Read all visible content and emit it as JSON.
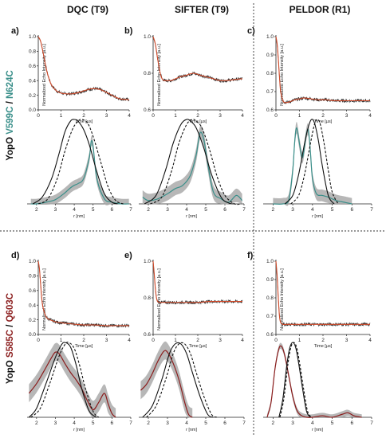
{
  "figure": {
    "columns": [
      "DQC (T9)",
      "SIFTER (T9)",
      "PELDOR (R1)"
    ],
    "rows": [
      {
        "protein": "YopO",
        "mut1": "V599C",
        "sep": "/",
        "mut2": "N624C",
        "color": "#3a8f8a"
      },
      {
        "protein": "YopO",
        "mut1": "S585C",
        "sep": "/",
        "mut2": "Q603C",
        "color": "#8b1d1d"
      }
    ],
    "panel_letters": [
      "a)",
      "b)",
      "c)",
      "d)",
      "e)",
      "f)"
    ],
    "time_xlabel": "Time [µs]",
    "time_ylabel": "Normalized Echo Intensity [a.u.]",
    "dist_xlabel": "r [nm]",
    "colors": {
      "trace": "#2a2a2a",
      "fit": "#d04a2a",
      "teal": "#3a8f8a",
      "red": "#8b1d1d",
      "band": "#aaaaaa"
    }
  },
  "chart_data": [
    {
      "id": "a-time",
      "type": "line",
      "xlim": [
        0,
        4
      ],
      "ylim": [
        0,
        1
      ],
      "xticks": [
        0,
        1,
        2,
        3,
        4
      ],
      "yticks": [
        0,
        0.2,
        0.4,
        0.6,
        0.8,
        1.0
      ],
      "series": [
        {
          "x": [
            0,
            0.1,
            0.2,
            0.3,
            0.4,
            0.5,
            0.6,
            0.8,
            1.0,
            1.2,
            1.5,
            1.8,
            2.1,
            2.4,
            2.7,
            3.0,
            3.3,
            3.6,
            4.0
          ],
          "y": [
            1.0,
            0.94,
            0.8,
            0.64,
            0.5,
            0.4,
            0.33,
            0.26,
            0.23,
            0.22,
            0.22,
            0.24,
            0.27,
            0.29,
            0.28,
            0.24,
            0.19,
            0.15,
            0.14
          ]
        }
      ]
    },
    {
      "id": "b-time",
      "type": "line",
      "xlim": [
        0,
        4
      ],
      "ylim": [
        0.6,
        1
      ],
      "xticks": [
        0,
        1,
        2,
        3,
        4
      ],
      "yticks": [
        0.6,
        0.8,
        1.0
      ],
      "series": [
        {
          "x": [
            0,
            0.1,
            0.2,
            0.3,
            0.4,
            0.5,
            0.6,
            0.8,
            1.0,
            1.2,
            1.5,
            1.8,
            2.1,
            2.4,
            2.7,
            3.0,
            3.3,
            3.6,
            4.0
          ],
          "y": [
            1.0,
            0.96,
            0.88,
            0.81,
            0.77,
            0.76,
            0.76,
            0.76,
            0.77,
            0.78,
            0.79,
            0.8,
            0.79,
            0.78,
            0.77,
            0.76,
            0.76,
            0.765,
            0.77
          ]
        }
      ]
    },
    {
      "id": "c-time",
      "type": "line",
      "xlim": [
        0,
        4
      ],
      "ylim": [
        0.6,
        1
      ],
      "xticks": [
        0,
        1,
        2,
        3,
        4
      ],
      "yticks": [
        0.6,
        0.7,
        0.8,
        0.9,
        1.0
      ],
      "series": [
        {
          "x": [
            0,
            0.05,
            0.1,
            0.15,
            0.2,
            0.3,
            0.4,
            0.6,
            0.8,
            1.0,
            1.2,
            1.5,
            1.8,
            2.1,
            2.5,
            3.0,
            3.5,
            4.0
          ],
          "y": [
            1.0,
            0.96,
            0.88,
            0.78,
            0.7,
            0.65,
            0.64,
            0.645,
            0.655,
            0.66,
            0.665,
            0.66,
            0.655,
            0.655,
            0.65,
            0.65,
            0.65,
            0.65
          ]
        }
      ]
    },
    {
      "id": "d-time",
      "type": "line",
      "xlim": [
        0,
        4
      ],
      "ylim": [
        0,
        1
      ],
      "xticks": [
        0,
        1,
        2,
        3,
        4
      ],
      "yticks": [
        0,
        0.2,
        0.4,
        0.6,
        0.8,
        1.0
      ],
      "series": [
        {
          "x": [
            0,
            0.05,
            0.1,
            0.15,
            0.2,
            0.3,
            0.4,
            0.6,
            0.8,
            1.0,
            1.3,
            1.6,
            2.0,
            2.5,
            3.0,
            3.5,
            4.0
          ],
          "y": [
            1.0,
            0.9,
            0.7,
            0.5,
            0.38,
            0.27,
            0.22,
            0.19,
            0.17,
            0.16,
            0.15,
            0.14,
            0.13,
            0.13,
            0.12,
            0.12,
            0.12
          ]
        }
      ]
    },
    {
      "id": "e-time",
      "type": "line",
      "xlim": [
        0,
        4
      ],
      "ylim": [
        0.6,
        1
      ],
      "xticks": [
        0,
        1,
        2,
        3,
        4
      ],
      "yticks": [
        0.6,
        0.8,
        1.0
      ],
      "series": [
        {
          "x": [
            0,
            0.05,
            0.1,
            0.15,
            0.2,
            0.3,
            0.4,
            0.6,
            0.8,
            1.0,
            1.5,
            2.0,
            2.5,
            3.0,
            3.5,
            4.0
          ],
          "y": [
            1.0,
            0.93,
            0.85,
            0.8,
            0.78,
            0.775,
            0.775,
            0.775,
            0.775,
            0.775,
            0.775,
            0.775,
            0.78,
            0.78,
            0.78,
            0.78
          ]
        }
      ]
    },
    {
      "id": "f-time",
      "type": "line",
      "xlim": [
        0,
        4
      ],
      "ylim": [
        0.6,
        1
      ],
      "xticks": [
        0,
        1,
        2,
        3,
        4
      ],
      "yticks": [
        0.6,
        0.7,
        0.8,
        0.9,
        1.0
      ],
      "series": [
        {
          "x": [
            0,
            0.05,
            0.1,
            0.15,
            0.2,
            0.3,
            0.4,
            0.6,
            1.0,
            1.5,
            2.0,
            2.5,
            3.0,
            3.5,
            4.0
          ],
          "y": [
            1.0,
            0.92,
            0.8,
            0.7,
            0.665,
            0.655,
            0.655,
            0.655,
            0.655,
            0.655,
            0.655,
            0.655,
            0.655,
            0.655,
            0.655
          ]
        }
      ]
    },
    {
      "id": "a-dist",
      "type": "line",
      "xlim": [
        1.5,
        7
      ],
      "ylim": [
        0,
        1
      ],
      "xticks": [
        2,
        3,
        4,
        5,
        6,
        7
      ],
      "series": [
        {
          "x": [
            1.7,
            2.0,
            2.5,
            3.0,
            3.5,
            3.8,
            4.0,
            4.2,
            4.5,
            4.8,
            4.9,
            5.0,
            5.2,
            5.6,
            6.0,
            6.5,
            6.9
          ],
          "y": [
            0.0,
            0.0,
            0.02,
            0.05,
            0.13,
            0.19,
            0.22,
            0.24,
            0.3,
            0.55,
            0.74,
            0.68,
            0.3,
            0.06,
            0.02,
            0.0,
            0.0
          ],
          "band": 0.06
        },
        {
          "x": [
            1.8,
            2.3,
            2.8,
            3.2,
            3.5,
            3.8,
            4.0,
            4.2,
            4.5,
            4.8,
            5.2,
            5.6,
            6.0,
            6.3
          ],
          "y": [
            0.0,
            0.08,
            0.3,
            0.6,
            0.85,
            0.98,
            1.0,
            0.98,
            0.88,
            0.7,
            0.38,
            0.12,
            0.02,
            0.0
          ]
        },
        {
          "x": [
            2.1,
            2.6,
            3.1,
            3.5,
            3.9,
            4.2,
            4.4,
            4.7,
            5.0,
            5.4,
            5.8,
            6.2,
            6.6
          ],
          "y": [
            0.0,
            0.06,
            0.3,
            0.62,
            0.88,
            0.98,
            1.0,
            0.96,
            0.8,
            0.5,
            0.2,
            0.04,
            0.0
          ]
        }
      ]
    },
    {
      "id": "b-dist",
      "type": "line",
      "xlim": [
        1.5,
        7
      ],
      "ylim": [
        0,
        1
      ],
      "xticks": [
        2,
        3,
        4,
        5,
        6,
        7
      ],
      "series": [
        {
          "x": [
            1.7,
            2.0,
            2.5,
            3.0,
            3.4,
            3.8,
            4.2,
            4.5,
            4.7,
            4.9,
            5.1,
            5.4,
            5.8,
            6.2,
            6.6,
            6.9
          ],
          "y": [
            0.08,
            0.04,
            0.06,
            0.12,
            0.18,
            0.22,
            0.34,
            0.58,
            0.84,
            0.76,
            0.48,
            0.14,
            0.06,
            0.02,
            0.1,
            0.04
          ],
          "band": 0.08
        },
        {
          "x": [
            1.8,
            2.4,
            2.9,
            3.3,
            3.7,
            4.0,
            4.2,
            4.5,
            4.9,
            5.3,
            5.8,
            6.2,
            6.5
          ],
          "y": [
            0.0,
            0.1,
            0.4,
            0.72,
            0.94,
            1.0,
            0.98,
            0.9,
            0.66,
            0.35,
            0.08,
            0.01,
            0.0
          ]
        },
        {
          "x": [
            2.1,
            2.7,
            3.2,
            3.6,
            4.0,
            4.3,
            4.5,
            4.8,
            5.2,
            5.6,
            6.0,
            6.5,
            6.8
          ],
          "y": [
            0.0,
            0.08,
            0.38,
            0.72,
            0.94,
            1.0,
            0.98,
            0.9,
            0.64,
            0.32,
            0.1,
            0.0,
            0.0
          ]
        }
      ]
    },
    {
      "id": "c-dist",
      "type": "line",
      "xlim": [
        1.5,
        7
      ],
      "ylim": [
        0,
        1
      ],
      "xticks": [
        2,
        3,
        4,
        5,
        6,
        7
      ],
      "series": [
        {
          "x": [
            2.0,
            2.5,
            2.8,
            3.0,
            3.1,
            3.2,
            3.35,
            3.5,
            3.7,
            3.8,
            3.9,
            4.0,
            4.2,
            4.5,
            4.8,
            5.2,
            5.6,
            6.0
          ],
          "y": [
            0.0,
            0.0,
            0.05,
            0.4,
            0.74,
            0.9,
            0.7,
            0.55,
            0.84,
            0.86,
            0.6,
            0.3,
            0.12,
            0.1,
            0.08,
            0.04,
            0.02,
            0.0
          ],
          "band": 0.07
        },
        {
          "x": [
            2.6,
            3.0,
            3.3,
            3.6,
            3.8,
            3.95,
            4.1,
            4.3,
            4.5,
            4.8,
            5.1
          ],
          "y": [
            0.0,
            0.1,
            0.35,
            0.72,
            0.92,
            1.0,
            0.96,
            0.75,
            0.45,
            0.1,
            0.0
          ]
        },
        {
          "x": [
            2.9,
            3.3,
            3.6,
            3.9,
            4.1,
            4.25,
            4.4,
            4.6,
            4.8,
            5.0,
            5.3
          ],
          "y": [
            0.0,
            0.1,
            0.35,
            0.72,
            0.94,
            1.0,
            0.94,
            0.7,
            0.4,
            0.14,
            0.0
          ]
        }
      ]
    },
    {
      "id": "d-dist",
      "type": "line",
      "xlim": [
        1.5,
        7
      ],
      "ylim": [
        0,
        1
      ],
      "xticks": [
        2,
        3,
        4,
        5,
        6,
        7
      ],
      "series": [
        {
          "x": [
            1.6,
            2.0,
            2.4,
            2.8,
            3.0,
            3.2,
            3.5,
            3.8,
            4.1,
            4.4,
            4.7,
            5.0,
            5.3,
            5.6,
            5.8,
            6.0,
            6.2
          ],
          "y": [
            0.32,
            0.45,
            0.62,
            0.8,
            0.87,
            0.85,
            0.72,
            0.6,
            0.5,
            0.38,
            0.22,
            0.1,
            0.2,
            0.32,
            0.18,
            0.05,
            0.0
          ],
          "band": 0.12
        },
        {
          "x": [
            1.6,
            2.0,
            2.5,
            3.0,
            3.3,
            3.5,
            3.8,
            4.1,
            4.4,
            4.8,
            5.2
          ],
          "y": [
            0.0,
            0.12,
            0.45,
            0.8,
            0.96,
            1.0,
            0.94,
            0.7,
            0.38,
            0.08,
            0.0
          ]
        },
        {
          "x": [
            1.7,
            2.2,
            2.7,
            3.2,
            3.5,
            3.7,
            4.0,
            4.3,
            4.6,
            5.0,
            5.3
          ],
          "y": [
            0.0,
            0.12,
            0.45,
            0.82,
            0.97,
            1.0,
            0.92,
            0.68,
            0.38,
            0.08,
            0.0
          ]
        }
      ]
    },
    {
      "id": "e-dist",
      "type": "line",
      "xlim": [
        1.5,
        7
      ],
      "ylim": [
        0,
        1
      ],
      "xticks": [
        2,
        3,
        4,
        5,
        6,
        7
      ],
      "series": [
        {
          "x": [
            1.6,
            1.9,
            2.2,
            2.5,
            2.8,
            3.0,
            3.3,
            3.6,
            3.9,
            4.1,
            4.3
          ],
          "y": [
            0.36,
            0.44,
            0.58,
            0.75,
            0.88,
            0.87,
            0.72,
            0.5,
            0.2,
            0.04,
            0.0
          ],
          "band": 0.12
        },
        {
          "x": [
            1.7,
            2.2,
            2.7,
            3.1,
            3.4,
            3.7,
            4.0,
            4.3,
            4.7,
            5.1,
            5.4
          ],
          "y": [
            0.0,
            0.15,
            0.5,
            0.85,
            0.98,
            0.98,
            0.85,
            0.6,
            0.28,
            0.04,
            0.0
          ]
        },
        {
          "x": [
            1.9,
            2.4,
            2.9,
            3.3,
            3.6,
            3.9,
            4.2,
            4.5,
            4.9,
            5.3,
            5.6
          ],
          "y": [
            0.0,
            0.15,
            0.5,
            0.85,
            0.98,
            0.98,
            0.85,
            0.6,
            0.28,
            0.04,
            0.0
          ]
        }
      ]
    },
    {
      "id": "f-dist",
      "type": "line",
      "xlim": [
        1.5,
        7
      ],
      "ylim": [
        0,
        1
      ],
      "xticks": [
        2,
        3,
        4,
        5,
        6,
        7
      ],
      "series": [
        {
          "x": [
            1.7,
            1.9,
            2.1,
            2.3,
            2.45,
            2.6,
            2.8,
            3.0,
            3.2,
            3.4,
            3.7,
            4.0,
            4.5,
            5.0,
            5.5,
            5.8,
            6.1,
            6.5
          ],
          "y": [
            0.0,
            0.2,
            0.65,
            0.92,
            0.94,
            0.82,
            0.55,
            0.28,
            0.1,
            0.03,
            0.0,
            0.0,
            0.02,
            0.0,
            0.04,
            0.06,
            0.02,
            0.0
          ],
          "band": 0.04
        },
        {
          "x": [
            2.3,
            2.5,
            2.7,
            2.85,
            3.0,
            3.15,
            3.3,
            3.5,
            3.7,
            3.9
          ],
          "y": [
            0.0,
            0.25,
            0.7,
            0.93,
            1.0,
            0.93,
            0.72,
            0.38,
            0.08,
            0.0
          ]
        },
        {
          "x": [
            2.35,
            2.55,
            2.75,
            2.9,
            3.05,
            3.2,
            3.35,
            3.55,
            3.75,
            3.95
          ],
          "y": [
            0.0,
            0.25,
            0.7,
            0.93,
            1.0,
            0.93,
            0.72,
            0.38,
            0.08,
            0.0
          ]
        }
      ]
    }
  ]
}
